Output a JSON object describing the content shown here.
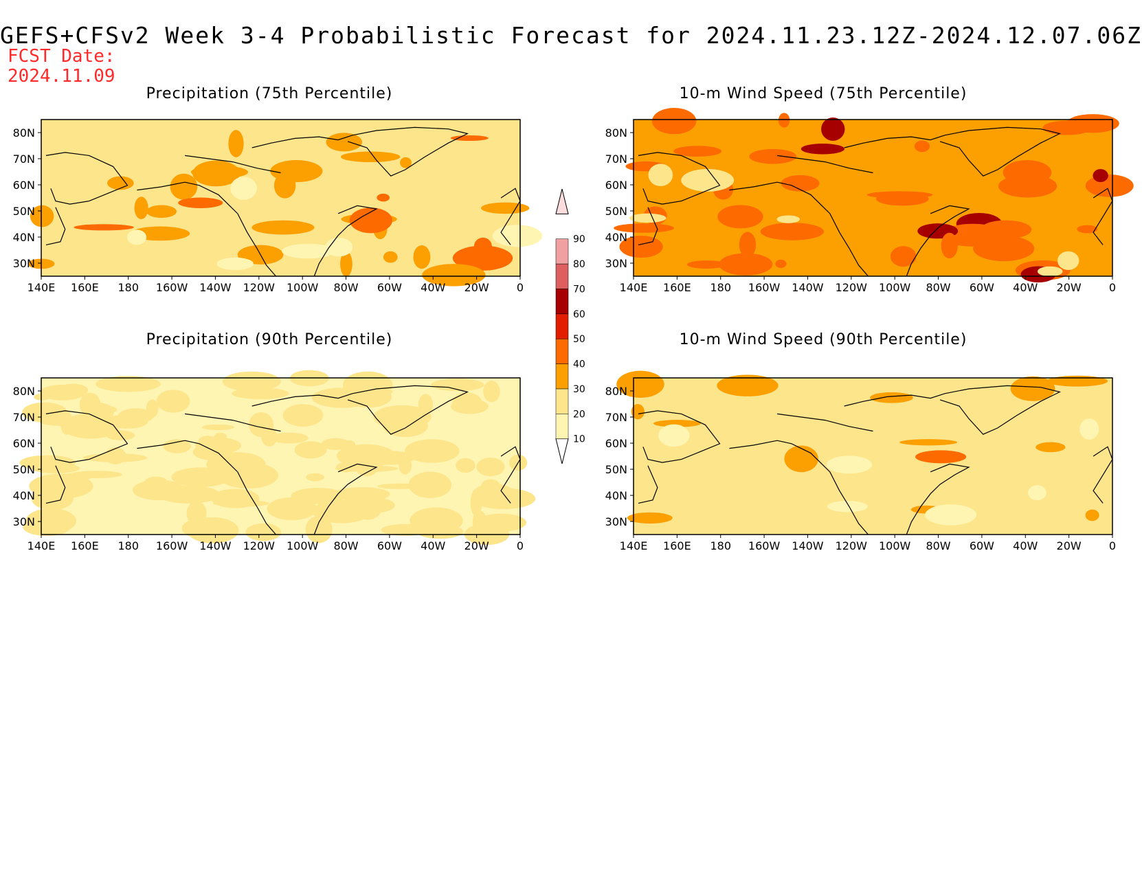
{
  "title": "GEFS+CFSv2 Week 3-4 Probabilistic Forecast for 2024.11.23.12Z-2024.12.07.06Z",
  "fcst_date_label": "FCST Date:",
  "fcst_date_value": "2024.11.09",
  "panels": [
    {
      "id": "precip75",
      "title": "Precipitation (75th Percentile)",
      "base_level": 20,
      "hot_level": 30,
      "hot_fraction": 0.12,
      "peak_level": 40
    },
    {
      "id": "wind75",
      "title": "10-m Wind Speed (75th Percentile)",
      "base_level": 30,
      "hot_level": 40,
      "hot_fraction": 0.15,
      "peak_level": 60
    },
    {
      "id": "precip90",
      "title": "Precipitation (90th Percentile)",
      "base_level": 10,
      "hot_level": 20,
      "hot_fraction": 0.45,
      "peak_level": 20
    },
    {
      "id": "wind90",
      "title": "10-m Wind Speed (90th Percentile)",
      "base_level": 20,
      "hot_level": 30,
      "hot_fraction": 0.04,
      "peak_level": 40
    }
  ],
  "x_ticks": [
    "140E",
    "160E",
    "180",
    "160W",
    "140W",
    "120W",
    "100W",
    "80W",
    "60W",
    "40W",
    "20W",
    "0"
  ],
  "y_ticks": [
    "80N",
    "70N",
    "60N",
    "50N",
    "40N",
    "30N"
  ],
  "colorbar": {
    "levels": [
      10,
      20,
      30,
      40,
      50,
      60,
      70,
      80,
      90
    ],
    "colors": [
      "#ffffff",
      "#fff5b3",
      "#fde58c",
      "#fc9f00",
      "#fc6a00",
      "#e21d00",
      "#a60000",
      "#dd5f5f",
      "#f0a0a0",
      "#fcdcdc"
    ]
  }
}
